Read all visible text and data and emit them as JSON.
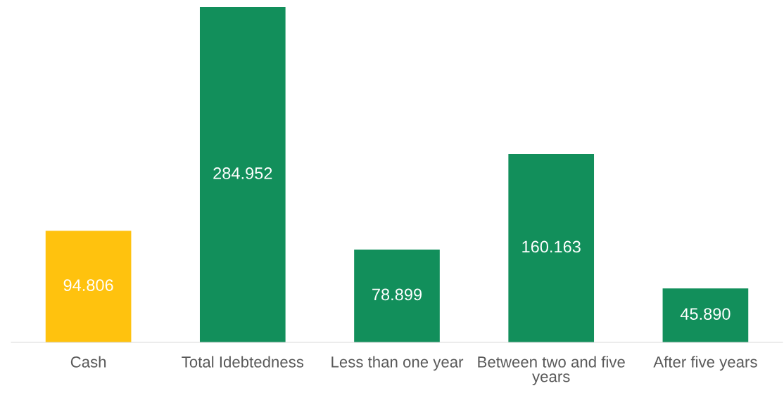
{
  "chart_data": {
    "type": "bar",
    "categories": [
      "Cash",
      "Total Idebtedness",
      "Less than one year",
      "Between two and five years",
      "After five years"
    ],
    "values": [
      94.806,
      284.952,
      78.899,
      160.163,
      45.89
    ],
    "value_labels": [
      "94.806",
      "284.952",
      "78.899",
      "160.163",
      "45.890"
    ],
    "colors": [
      "#ffc20e",
      "#128f5b",
      "#128f5b",
      "#128f5b",
      "#128f5b"
    ],
    "grid": false,
    "legend": false
  }
}
